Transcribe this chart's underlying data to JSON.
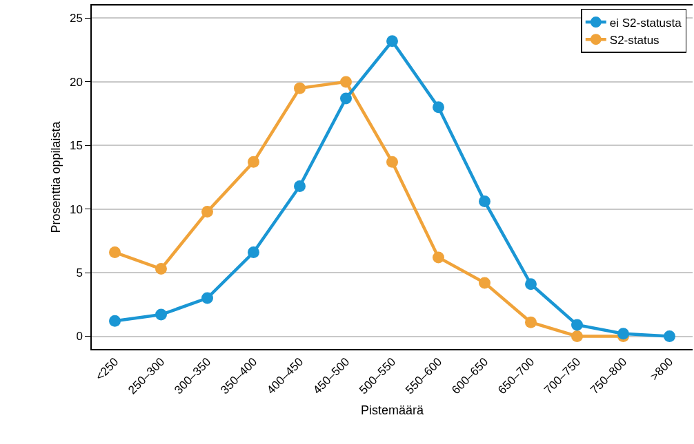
{
  "chart_data": {
    "type": "line",
    "xlabel": "Pistemäärä",
    "ylabel": "Prosenttia oppilaista",
    "categories": [
      "<250",
      "250–300",
      "300–350",
      "350–400",
      "400–450",
      "450–500",
      "500–550",
      "550–600",
      "600–650",
      "650–700",
      "700–750",
      "750–800",
      ">800"
    ],
    "series": [
      {
        "name": "ei S2-statusta",
        "color": "#1a96d4",
        "values": [
          1.2,
          1.7,
          3.0,
          6.6,
          11.8,
          18.7,
          23.2,
          18.0,
          10.6,
          4.1,
          0.9,
          0.2,
          0.0
        ]
      },
      {
        "name": "S2-status",
        "color": "#f0a33a",
        "values": [
          6.6,
          5.3,
          9.8,
          13.7,
          19.5,
          20.0,
          13.7,
          6.2,
          4.2,
          1.1,
          0.0,
          0.0,
          null
        ]
      }
    ],
    "ylim": [
      -1,
      26
    ],
    "yticks": [
      0,
      5,
      10,
      15,
      20,
      25
    ],
    "grid": "y",
    "legend": "top right",
    "marker": "circle",
    "line_style": "solid"
  }
}
